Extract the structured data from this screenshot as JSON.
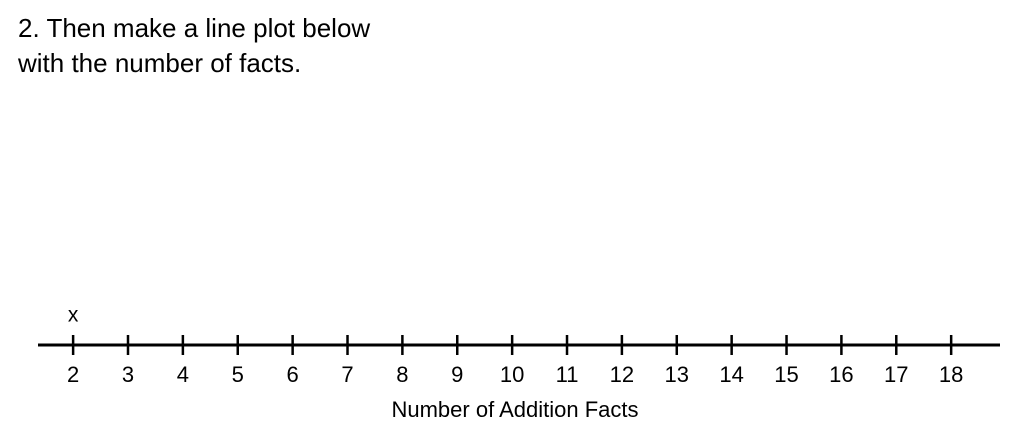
{
  "instruction": [
    "2. Then make a line plot below",
    "with the number of facts."
  ],
  "chart_data": {
    "type": "dot",
    "x": [
      2
    ],
    "values": [
      1
    ],
    "marker": "x",
    "xlabel": "Number of Addition Facts",
    "xlim": [
      1.36,
      18.89
    ],
    "xticks": [
      2,
      3,
      4,
      5,
      6,
      7,
      8,
      9,
      10,
      11,
      12,
      13,
      14,
      15,
      16,
      17,
      18
    ]
  }
}
